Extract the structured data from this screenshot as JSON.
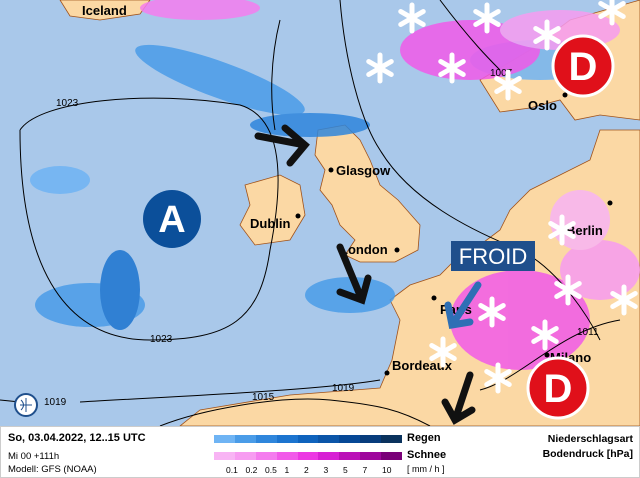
{
  "map": {
    "colors": {
      "sea": "#a9c8ea",
      "land": "#fbd8a4",
      "high": "#0b4f9a",
      "low": "#e0101a"
    },
    "pressure_centers": [
      {
        "label": "A",
        "type": "high"
      },
      {
        "label": "D",
        "type": "low"
      },
      {
        "label": "D",
        "type": "low"
      }
    ],
    "annotation": "FROID",
    "cities": [
      "Iceland",
      "Glasgow",
      "Dublin",
      "London",
      "Berlin",
      "Paris",
      "Bordeaux",
      "Milano",
      "Oslo"
    ],
    "isobars": [
      "1023",
      "1023",
      "1019",
      "1019",
      "1015",
      "1011",
      "1007"
    ],
    "logo_icon": "globe-logo-icon"
  },
  "footer": {
    "datetime": "So, 03.04.2022, 12..15 UTC",
    "run": "Mi 00 +111h",
    "model": "Modell: GFS (NOAA)",
    "rain_label": "Regen",
    "snow_label": "Schnee",
    "unit": "[ mm / h ]",
    "legend_title1": "Niederschlagsart",
    "legend_title2": "Bodendruck [hPa]",
    "ticks": [
      "0.1",
      "0.2",
      "0.5",
      "1",
      "2",
      "3",
      "5",
      "7",
      "10"
    ],
    "rain_colors": [
      "#6fb4f4",
      "#4a9ce8",
      "#2f86dc",
      "#1c74cf",
      "#0f63bd",
      "#0b55a8",
      "#064896",
      "#073c7c",
      "#0a325d"
    ],
    "snow_colors": [
      "#f8b4f4",
      "#f79cf1",
      "#f47cee",
      "#f15ae9",
      "#ec38e3",
      "#d720d4",
      "#bb10b8",
      "#9e069c",
      "#7a0078"
    ]
  }
}
